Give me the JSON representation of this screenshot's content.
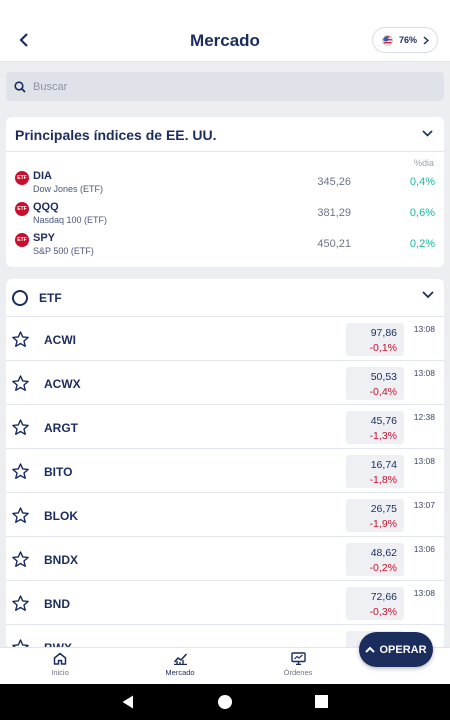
{
  "header": {
    "title": "Mercado",
    "percent": "76%"
  },
  "search": {
    "placeholder": "Buscar"
  },
  "indices": {
    "title": "Principales índices de EE. UU.",
    "column_header": "%dia",
    "logo_text": "ETF",
    "rows": [
      {
        "symbol": "DIA",
        "name": "Dow Jones (ETF)",
        "price": "345,26",
        "change": "0,4%"
      },
      {
        "symbol": "QQQ",
        "name": "Nasdaq 100 (ETF)",
        "price": "381,29",
        "change": "0,6%"
      },
      {
        "symbol": "SPY",
        "name": "S&P 500 (ETF)",
        "price": "450,21",
        "change": "0,2%"
      }
    ]
  },
  "etf": {
    "title": "ETF",
    "rows": [
      {
        "symbol": "ACWI",
        "price": "97,86",
        "change": "-0,1%",
        "time": "13:08"
      },
      {
        "symbol": "ACWX",
        "price": "50,53",
        "change": "-0,4%",
        "time": "13:08"
      },
      {
        "symbol": "ARGT",
        "price": "45,76",
        "change": "-1,3%",
        "time": "12:38"
      },
      {
        "symbol": "BITO",
        "price": "16,74",
        "change": "-1,8%",
        "time": "13:08"
      },
      {
        "symbol": "BLOK",
        "price": "26,75",
        "change": "-1,9%",
        "time": "13:07"
      },
      {
        "symbol": "BNDX",
        "price": "48,62",
        "change": "-0,2%",
        "time": "13:06"
      },
      {
        "symbol": "BND",
        "price": "72,66",
        "change": "-0,3%",
        "time": "13:08"
      },
      {
        "symbol": "BWX",
        "price": "",
        "change": "",
        "time": ""
      }
    ]
  },
  "operar": {
    "label": "OPERAR"
  },
  "nav": {
    "inicio": "Inicio",
    "mercado": "Mercado",
    "ordenes": "Órdenes"
  },
  "colors": {
    "primary": "#1b2d5c",
    "positive": "#19b9a2",
    "negative": "#c8102e"
  }
}
